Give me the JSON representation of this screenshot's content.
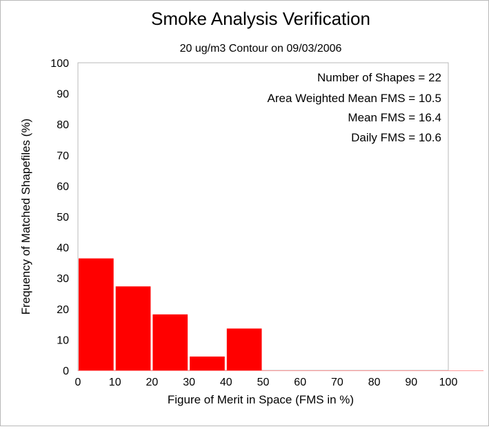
{
  "chart_data": {
    "type": "bar",
    "title": "Smoke Analysis Verification",
    "subtitle": "20 ug/m3 Contour on 09/03/2006",
    "xlabel": "Figure of Merit in Space (FMS in %)",
    "ylabel": "Frequency of Matched Shapefiles (%)",
    "xlim": [
      0,
      100
    ],
    "ylim": [
      0,
      100
    ],
    "xticks": [
      "0",
      "10",
      "20",
      "30",
      "40",
      "50",
      "60",
      "70",
      "80",
      "90",
      "100"
    ],
    "yticks": [
      "0",
      "10",
      "20",
      "30",
      "40",
      "50",
      "60",
      "70",
      "80",
      "90",
      "100"
    ],
    "bins": [
      {
        "start": 0,
        "end": 10,
        "value": 36.4
      },
      {
        "start": 10,
        "end": 20,
        "value": 27.3
      },
      {
        "start": 20,
        "end": 30,
        "value": 18.2
      },
      {
        "start": 30,
        "end": 40,
        "value": 4.5
      },
      {
        "start": 40,
        "end": 50,
        "value": 13.6
      },
      {
        "start": 50,
        "end": 60,
        "value": 0
      },
      {
        "start": 60,
        "end": 70,
        "value": 0
      },
      {
        "start": 70,
        "end": 80,
        "value": 0
      },
      {
        "start": 80,
        "end": 90,
        "value": 0
      },
      {
        "start": 90,
        "end": 100,
        "value": 0
      }
    ],
    "bar_color": "#ff0000",
    "grid": false,
    "annotations": [
      "Number of Shapes = 22",
      "Area Weighted Mean FMS = 10.5",
      "Mean FMS = 16.4",
      "Daily FMS = 10.6"
    ]
  }
}
